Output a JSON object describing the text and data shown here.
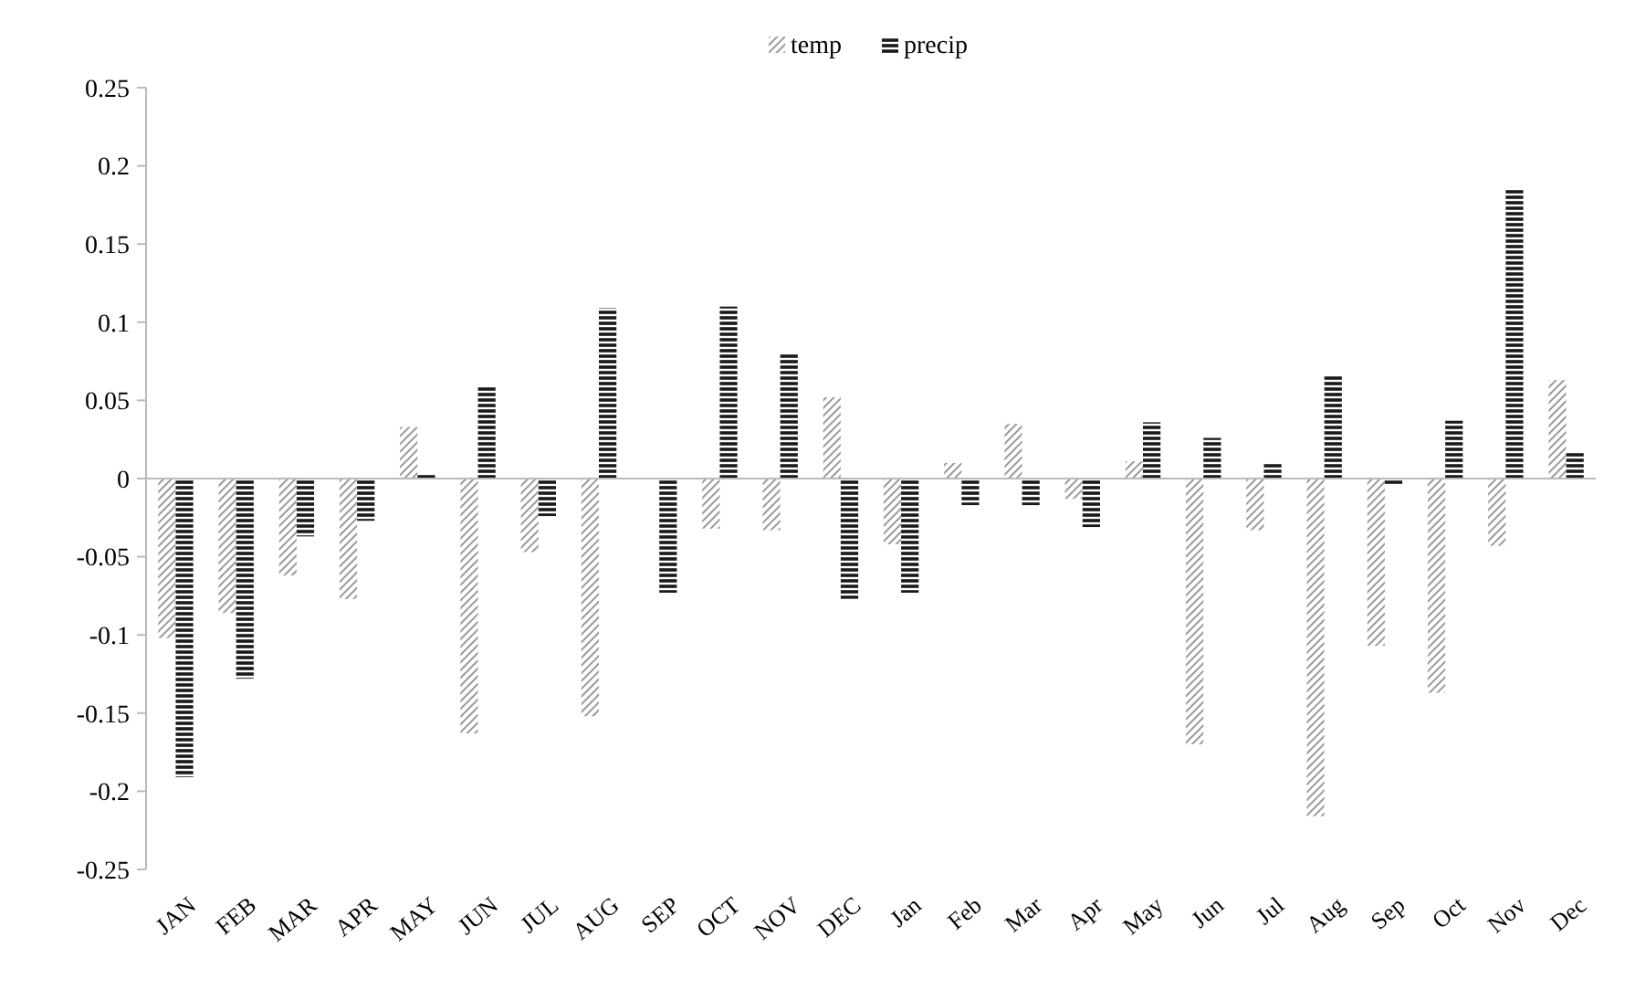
{
  "chart_data": {
    "type": "bar",
    "categories": [
      "JAN",
      "FEB",
      "MAR",
      "APR",
      "MAY",
      "JUN",
      "JUL",
      "AUG",
      "SEP",
      "OCT",
      "NOV",
      "DEC",
      "Jan",
      "Feb",
      "Mar",
      "Apr",
      "May",
      "Jun",
      "Jul",
      "Aug",
      "Sep",
      "Oct",
      "Nov",
      "Dec"
    ],
    "series": [
      {
        "name": "temp",
        "color": "#9a9a9a",
        "values": [
          -0.102,
          -0.086,
          -0.062,
          -0.077,
          0.033,
          -0.163,
          -0.047,
          -0.152,
          null,
          -0.032,
          -0.033,
          0.052,
          -0.042,
          0.01,
          0.035,
          -0.013,
          0.011,
          -0.17,
          -0.033,
          -0.216,
          -0.107,
          -0.137,
          -0.043,
          0.063
        ]
      },
      {
        "name": "precip",
        "color": "#1a1a1a",
        "values": [
          -0.191,
          -0.128,
          -0.037,
          -0.027,
          0.003,
          0.059,
          -0.024,
          0.109,
          -0.073,
          0.11,
          0.08,
          -0.077,
          -0.073,
          -0.017,
          -0.017,
          -0.031,
          0.036,
          0.026,
          0.01,
          0.066,
          -0.004,
          0.037,
          0.185,
          0.017
        ]
      }
    ],
    "ylim": [
      -0.25,
      0.25
    ],
    "yticks": [
      -0.25,
      -0.2,
      -0.15,
      -0.1,
      -0.05,
      0,
      0.05,
      0.1,
      0.15,
      0.2,
      0.25
    ],
    "legend": "top"
  }
}
